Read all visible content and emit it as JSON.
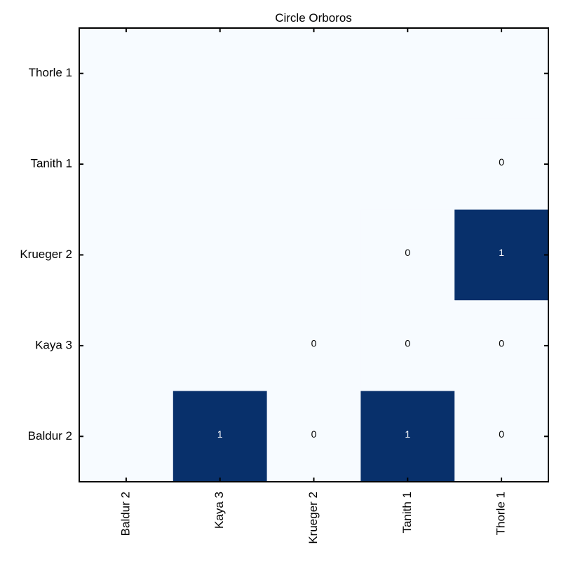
{
  "chart_data": {
    "type": "heatmap",
    "title": "Circle Orboros",
    "x_categories": [
      "Baldur 2",
      "Kaya 3",
      "Krueger 2",
      "Tanith 1",
      "Thorle 1"
    ],
    "y_categories": [
      "Thorle 1",
      "Tanith 1",
      "Krueger 2",
      "Kaya 3",
      "Baldur 2"
    ],
    "values": [
      [
        null,
        null,
        null,
        null,
        null
      ],
      [
        null,
        null,
        null,
        null,
        0
      ],
      [
        null,
        null,
        null,
        0,
        1
      ],
      [
        null,
        null,
        0,
        0,
        0
      ],
      [
        null,
        1,
        0,
        1,
        0
      ]
    ],
    "cell_labels": [
      [
        "",
        "",
        "",
        "",
        ""
      ],
      [
        "",
        "",
        "",
        "",
        "0"
      ],
      [
        "",
        "",
        "",
        "0",
        "1"
      ],
      [
        "",
        "",
        "0",
        "0",
        "0"
      ],
      [
        "",
        "1",
        "0",
        "1",
        "0"
      ]
    ],
    "colormap": {
      "low": "#f7fbff",
      "high": "#08306b"
    },
    "grid": false,
    "legend": "none"
  }
}
